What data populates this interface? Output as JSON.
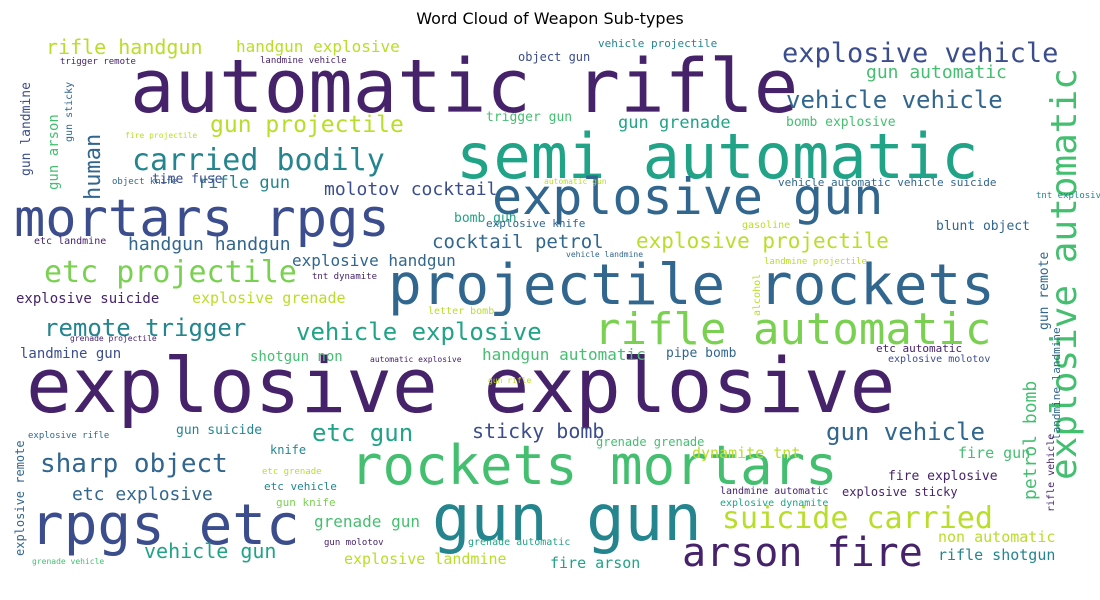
{
  "title": "Word Cloud of Weapon Sub-types",
  "palette": {
    "dark_purple": "#46226b",
    "indigo": "#3b4d8c",
    "blue": "#31668e",
    "teal": "#24858e",
    "green_teal": "#20a386",
    "green": "#44bf70",
    "lime": "#7ad151",
    "yellow": "#b8de29"
  },
  "words": [
    {
      "text": "automatic rifle",
      "color": "dark_purple"
    },
    {
      "text": "semi automatic",
      "color": "green_teal"
    },
    {
      "text": "mortars rpgs",
      "color": "indigo"
    },
    {
      "text": "explosive gun",
      "color": "blue"
    },
    {
      "text": "projectile rockets",
      "color": "blue"
    },
    {
      "text": "rifle automatic",
      "color": "lime"
    },
    {
      "text": "explosive explosive",
      "color": "dark_purple"
    },
    {
      "text": "rockets mortars",
      "color": "green"
    },
    {
      "text": "gun gun",
      "color": "teal"
    },
    {
      "text": "rpgs etc",
      "color": "indigo"
    },
    {
      "text": "arson fire",
      "color": "dark_purple"
    },
    {
      "text": "suicide carried",
      "color": "yellow"
    },
    {
      "text": "explosive vehicle",
      "color": "indigo"
    },
    {
      "text": "vehicle vehicle",
      "color": "blue"
    },
    {
      "text": "carried bodily",
      "color": "teal"
    },
    {
      "text": "etc projectile",
      "color": "lime"
    },
    {
      "text": "explosive automatic",
      "color": "green"
    },
    {
      "text": "remote trigger",
      "color": "teal"
    },
    {
      "text": "sharp object",
      "color": "blue"
    },
    {
      "text": "vehicle explosive",
      "color": "green_teal"
    },
    {
      "text": "rifle handgun",
      "color": "yellow"
    },
    {
      "text": "gun projectile",
      "color": "yellow"
    },
    {
      "text": "etc gun",
      "color": "green_teal"
    },
    {
      "text": "gun vehicle",
      "color": "blue"
    },
    {
      "text": "vehicle gun",
      "color": "green_teal"
    },
    {
      "text": "human",
      "color": "blue"
    },
    {
      "text": "explosive projectile",
      "color": "yellow"
    },
    {
      "text": "sticky bomb",
      "color": "indigo"
    },
    {
      "text": "etc explosive",
      "color": "blue"
    },
    {
      "text": "handgun handgun",
      "color": "blue"
    },
    {
      "text": "cocktail petrol",
      "color": "blue"
    },
    {
      "text": "gun automatic",
      "color": "green"
    },
    {
      "text": "molotov cocktail",
      "color": "indigo"
    },
    {
      "text": "handgun explosive",
      "color": "yellow"
    },
    {
      "text": "explosive handgun",
      "color": "blue"
    },
    {
      "text": "gun grenade",
      "color": "green_teal"
    },
    {
      "text": "rifle gun",
      "color": "teal"
    },
    {
      "text": "handgun automatic",
      "color": "green"
    },
    {
      "text": "explosive grenade",
      "color": "yellow"
    },
    {
      "text": "grenade gun",
      "color": "green"
    },
    {
      "text": "explosive landmine",
      "color": "yellow"
    },
    {
      "text": "fire arson",
      "color": "green_teal"
    },
    {
      "text": "petrol bomb",
      "color": "green"
    },
    {
      "text": "rifle shotgun",
      "color": "teal"
    },
    {
      "text": "non automatic",
      "color": "yellow"
    },
    {
      "text": "dynamite tnt",
      "color": "yellow"
    },
    {
      "text": "fire gun",
      "color": "green"
    },
    {
      "text": "explosive suicide",
      "color": "dark_purple"
    },
    {
      "text": "landmine gun",
      "color": "indigo"
    },
    {
      "text": "shotgun non",
      "color": "green"
    },
    {
      "text": "gun landmine",
      "color": "indigo"
    },
    {
      "text": "gun arson",
      "color": "green"
    },
    {
      "text": "time fuse",
      "color": "indigo"
    },
    {
      "text": "trigger gun",
      "color": "green"
    },
    {
      "text": "bomb explosive",
      "color": "green"
    },
    {
      "text": "blunt object",
      "color": "blue"
    },
    {
      "text": "pipe bomb",
      "color": "blue"
    },
    {
      "text": "gun suicide",
      "color": "teal"
    },
    {
      "text": "fire explosive",
      "color": "dark_purple"
    },
    {
      "text": "explosive sticky",
      "color": "dark_purple"
    },
    {
      "text": "bomb gun",
      "color": "green_teal"
    },
    {
      "text": "object gun",
      "color": "indigo"
    },
    {
      "text": "knife",
      "color": "teal"
    },
    {
      "text": "gun remote",
      "color": "blue"
    },
    {
      "text": "explosive remote",
      "color": "blue"
    },
    {
      "text": "etc vehicle",
      "color": "teal"
    },
    {
      "text": "gun knife",
      "color": "lime"
    },
    {
      "text": "explosive knife",
      "color": "blue"
    },
    {
      "text": "grenade grenade",
      "color": "green"
    },
    {
      "text": "vehicle projectile",
      "color": "teal"
    },
    {
      "text": "vehicle automatic vehicle suicide",
      "color": "blue"
    },
    {
      "text": "gun sticky",
      "color": "blue"
    },
    {
      "text": "etc landmine",
      "color": "dark_purple"
    },
    {
      "text": "etc automatic",
      "color": "dark_purple"
    },
    {
      "text": "landmine landmine",
      "color": "blue"
    },
    {
      "text": "explosive molotov",
      "color": "indigo"
    },
    {
      "text": "letter bomb",
      "color": "yellow"
    },
    {
      "text": "alcohol",
      "color": "yellow"
    },
    {
      "text": "gasoline",
      "color": "yellow"
    },
    {
      "text": "tnt dynamite",
      "color": "dark_purple"
    },
    {
      "text": "tnt explosive",
      "color": "teal"
    },
    {
      "text": "trigger remote",
      "color": "dark_purple"
    },
    {
      "text": "landmine vehicle",
      "color": "dark_purple"
    },
    {
      "text": "fire projectile",
      "color": "yellow"
    },
    {
      "text": "object knife",
      "color": "blue"
    },
    {
      "text": "automatic gun",
      "color": "yellow"
    },
    {
      "text": "vehicle landmine",
      "color": "blue"
    },
    {
      "text": "landmine projectile",
      "color": "yellow"
    },
    {
      "text": "explosive rifle",
      "color": "blue"
    },
    {
      "text": "grenade projectile",
      "color": "dark_purple"
    },
    {
      "text": "automatic explosive",
      "color": "dark_purple"
    },
    {
      "text": "gun rifle",
      "color": "yellow"
    },
    {
      "text": "etc grenade",
      "color": "yellow"
    },
    {
      "text": "gun molotov",
      "color": "dark_purple"
    },
    {
      "text": "grenade automatic",
      "color": "green_teal"
    },
    {
      "text": "explosive dynamite",
      "color": "green_teal"
    },
    {
      "text": "landmine automatic",
      "color": "dark_purple"
    },
    {
      "text": "grenade vehicle",
      "color": "green"
    },
    {
      "text": "rifle vehicle",
      "color": "dark_purple"
    }
  ]
}
